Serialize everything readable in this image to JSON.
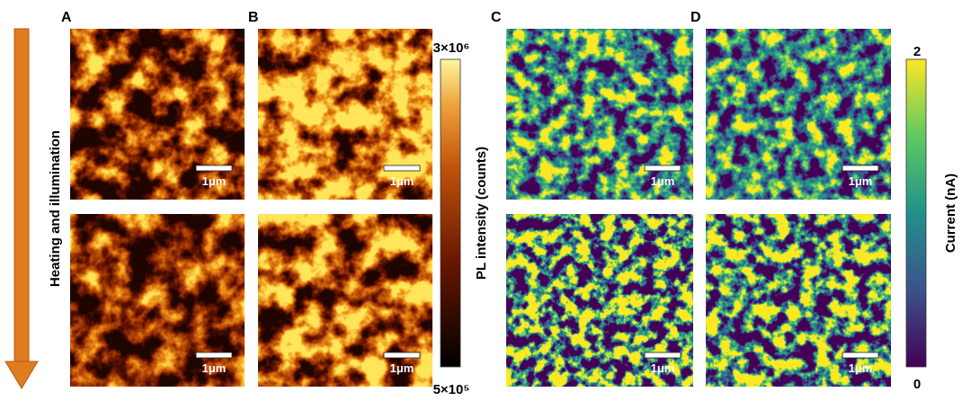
{
  "arrow_label": "Heating and illumination",
  "panels": [
    {
      "label": "A",
      "scale_bars": [
        "1μm",
        "1μm"
      ]
    },
    {
      "label": "B",
      "scale_bars": [
        "1μm",
        "1μm"
      ]
    },
    {
      "label": "C",
      "scale_bars": [
        "1μm",
        "1μm"
      ]
    },
    {
      "label": "D",
      "scale_bars": [
        "1μm",
        "1μm"
      ]
    }
  ],
  "pl_colorbar": {
    "max": "3×10⁶",
    "min": "5×10⁵",
    "title": "PL intensity (counts)"
  },
  "current_colorbar": {
    "max": "2",
    "min": "0",
    "title": "Current (nA)"
  }
}
